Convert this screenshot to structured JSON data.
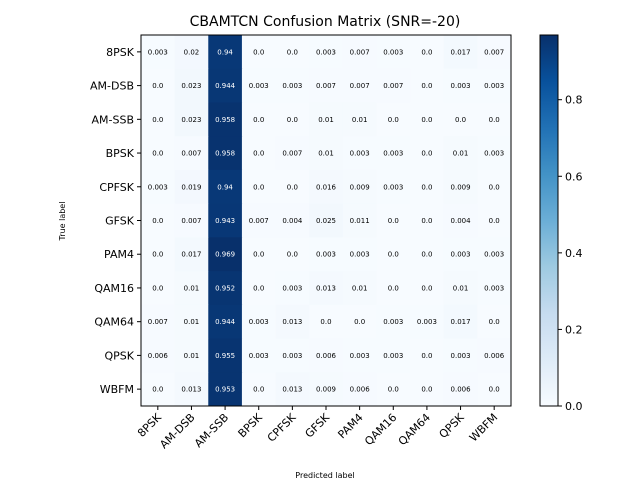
{
  "chart_data": {
    "type": "heatmap",
    "title": "CBAMTCN Confusion Matrix (SNR=-20)",
    "xlabel": "Predicted label",
    "ylabel": "True label",
    "row_labels": [
      "8PSK",
      "AM-DSB",
      "AM-SSB",
      "BPSK",
      "CPFSK",
      "GFSK",
      "PAM4",
      "QAM16",
      "QAM64",
      "QPSK",
      "WBFM"
    ],
    "col_labels": [
      "8PSK",
      "AM-DSB",
      "AM-SSB",
      "BPSK",
      "CPFSK",
      "GFSK",
      "PAM4",
      "QAM16",
      "QAM64",
      "QPSK",
      "WBFM"
    ],
    "values": [
      [
        0.003,
        0.02,
        0.94,
        0.0,
        0.0,
        0.003,
        0.007,
        0.003,
        0.0,
        0.017,
        0.007
      ],
      [
        0.0,
        0.023,
        0.944,
        0.003,
        0.003,
        0.007,
        0.007,
        0.007,
        0.0,
        0.003,
        0.003
      ],
      [
        0.0,
        0.023,
        0.958,
        0.0,
        0.0,
        0.01,
        0.01,
        0.0,
        0.0,
        0.0,
        0.0
      ],
      [
        0.0,
        0.007,
        0.958,
        0.0,
        0.007,
        0.01,
        0.003,
        0.003,
        0.0,
        0.01,
        0.003
      ],
      [
        0.003,
        0.019,
        0.94,
        0.0,
        0.0,
        0.016,
        0.009,
        0.003,
        0.0,
        0.009,
        0.0
      ],
      [
        0.0,
        0.007,
        0.943,
        0.007,
        0.004,
        0.025,
        0.011,
        0.0,
        0.0,
        0.004,
        0.0
      ],
      [
        0.0,
        0.017,
        0.969,
        0.0,
        0.0,
        0.003,
        0.003,
        0.0,
        0.0,
        0.003,
        0.003
      ],
      [
        0.0,
        0.01,
        0.952,
        0.0,
        0.003,
        0.013,
        0.01,
        0.0,
        0.0,
        0.01,
        0.003
      ],
      [
        0.007,
        0.01,
        0.944,
        0.003,
        0.013,
        0.0,
        0.0,
        0.003,
        0.003,
        0.017,
        0.0
      ],
      [
        0.006,
        0.01,
        0.955,
        0.003,
        0.003,
        0.006,
        0.003,
        0.003,
        0.0,
        0.003,
        0.006
      ],
      [
        0.0,
        0.013,
        0.953,
        0.0,
        0.013,
        0.009,
        0.006,
        0.0,
        0.0,
        0.006,
        0.0
      ]
    ],
    "colorbar": {
      "range": [
        0.0,
        0.969
      ],
      "ticks": [
        0.0,
        0.2,
        0.4,
        0.6,
        0.8
      ],
      "tick_labels": [
        "0.0",
        "0.2",
        "0.4",
        "0.6",
        "0.8"
      ]
    },
    "colormap": "Blues",
    "grid": false
  }
}
